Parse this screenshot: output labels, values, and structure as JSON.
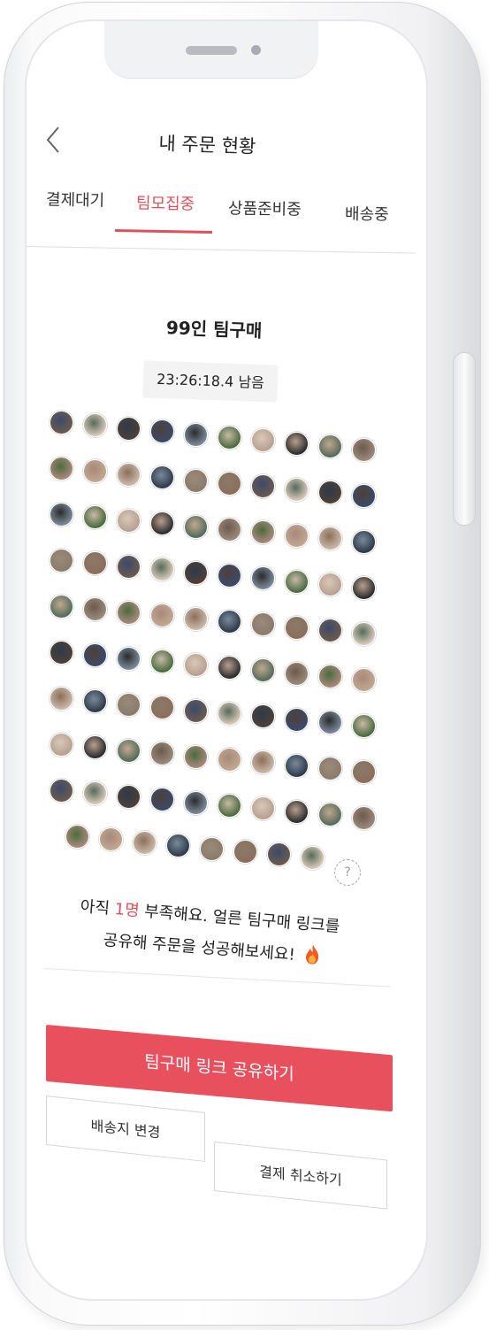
{
  "header": {
    "title": "내 주문 현황"
  },
  "tabs": [
    {
      "label": "결제대기",
      "active": false
    },
    {
      "label": "팀모집중",
      "active": true
    },
    {
      "label": "상품준비중",
      "active": false
    },
    {
      "label": "배송중",
      "active": false
    }
  ],
  "team_buy": {
    "title": "99인 팀구매",
    "timer": "23:26:18.4 남음"
  },
  "participants": {
    "joined_count": 98,
    "remaining_slot_symbol": "?"
  },
  "message": {
    "part1": "아직 ",
    "highlight": "1명",
    "part2": " 부족해요. 얼른 팀구매 링크를",
    "line2": "공유해 주문을 성공해보세요!"
  },
  "buttons": {
    "share": "팀구매 링크 공유하기",
    "change_address": "배송지 변경",
    "cancel_payment": "결제 취소하기"
  },
  "colors": {
    "accent": "#e9505e",
    "highlight_text": "#e2505b"
  },
  "icons": {
    "back": "chevron-left-icon",
    "fire": "fire-icon"
  }
}
